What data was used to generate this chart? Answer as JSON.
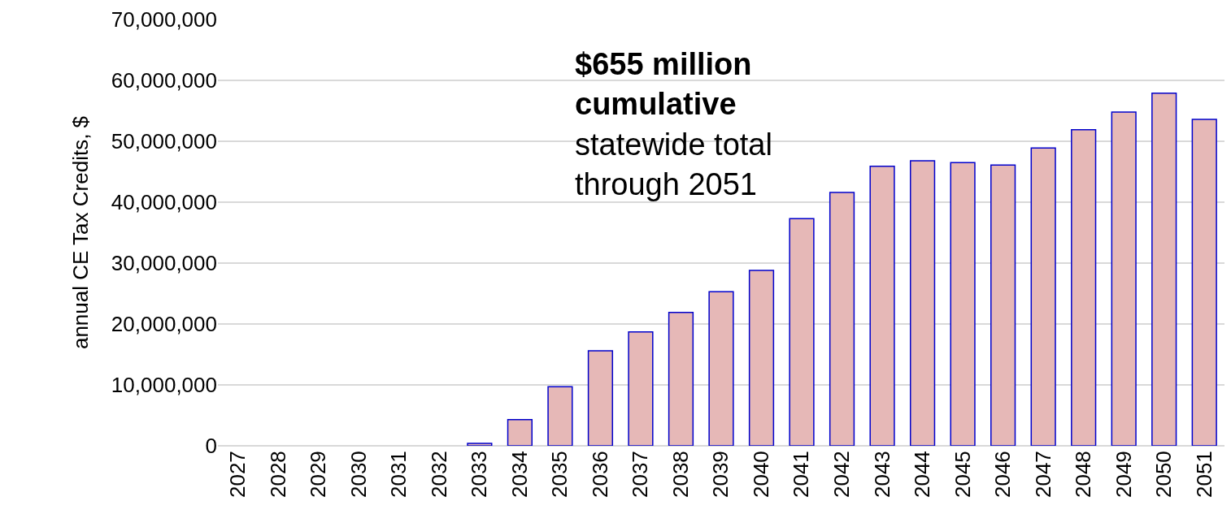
{
  "chart_data": {
    "type": "bar",
    "ylabel": "annual CE Tax Credits, $",
    "categories": [
      "2027",
      "2028",
      "2029",
      "2030",
      "2031",
      "2032",
      "2033",
      "2034",
      "2035",
      "2036",
      "2037",
      "2038",
      "2039",
      "2040",
      "2041",
      "2042",
      "2043",
      "2044",
      "2045",
      "2046",
      "2047",
      "2048",
      "2049",
      "2050",
      "2051"
    ],
    "series": [
      {
        "color": "#e6b8b7",
        "values": [
          0,
          0,
          0,
          0,
          0,
          0,
          400000,
          4300000,
          9700000,
          15600000,
          18700000,
          21900000,
          25300000,
          28800000,
          37300000,
          41600000,
          45900000,
          46800000,
          46500000,
          46100000,
          48900000,
          51900000,
          54800000,
          57900000,
          53600000
        ]
      }
    ],
    "ylim": [
      0,
      70000000
    ],
    "yticks": [
      {
        "value": 0,
        "label": "0"
      },
      {
        "value": 10000000,
        "label": "10,000,000"
      },
      {
        "value": 20000000,
        "label": "20,000,000"
      },
      {
        "value": 30000000,
        "label": "30,000,000"
      },
      {
        "value": 40000000,
        "label": "40,000,000"
      },
      {
        "value": 50000000,
        "label": "50,000,000"
      },
      {
        "value": 60000000,
        "label": "60,000,000"
      },
      {
        "value": 70000000,
        "label": "70,000,000"
      }
    ],
    "grid": "y",
    "annotations": [
      "$655 million cumulative",
      "statewide total through 2051"
    ]
  }
}
